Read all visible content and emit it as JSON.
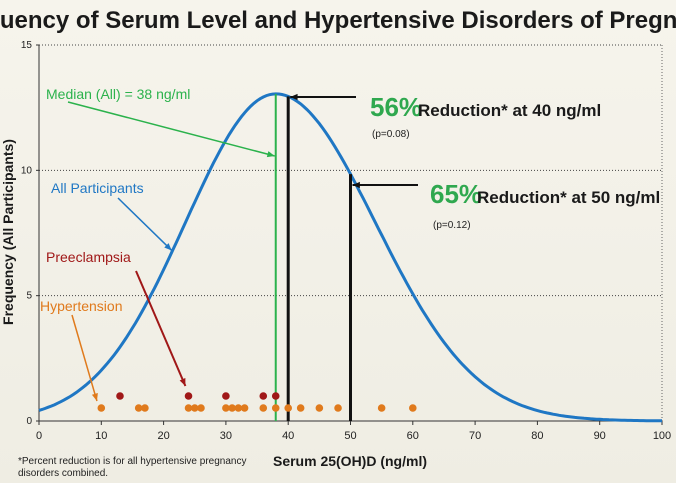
{
  "chart_data": {
    "type": "line",
    "title": "Frequency of Serum Level and Hypertensive Disorders of Pregnancy",
    "xlabel": "Serum 25(OH)D (ng/ml)",
    "ylabel": "Frequency (All Participants)",
    "xlim": [
      0,
      100
    ],
    "ylim": [
      0,
      15
    ],
    "xticks": [
      "0",
      "10",
      "20",
      "30",
      "40",
      "50",
      "60",
      "70",
      "80",
      "90",
      "100"
    ],
    "yticks": [
      "0",
      "5",
      "10",
      "15"
    ],
    "grid": "horizontal dotted at 5, 10",
    "distribution": {
      "name": "All Participants",
      "peak_x": 38,
      "peak_y": 13.05,
      "sd_left": 14.5,
      "sd_right": 16
    },
    "hypertension_points": [
      10,
      16,
      17,
      24,
      25,
      26,
      30,
      31,
      32,
      33,
      36,
      38,
      40,
      42,
      45,
      48,
      55,
      60
    ],
    "preeclampsia_points": [
      13,
      24,
      30,
      36,
      38
    ],
    "median": {
      "label": "Median (All) = 38 ng/ml",
      "x": 38
    },
    "labels": {
      "all_participants": "All Participants",
      "preeclampsia": "Preeclampsia",
      "hypertension": "Hypertension"
    },
    "reductions": [
      {
        "percent": "56%",
        "text": "Reduction* at 40 ng/ml",
        "p": "(p=0.08)",
        "x": 40
      },
      {
        "percent": "65%",
        "text": "Reduction* at 50 ng/ml",
        "p": "(p=0.12)",
        "x": 50
      }
    ],
    "footnote": "*Percent reduction is for all hypertensive pregnancy disorders combined.",
    "colors": {
      "curve": "#1f77c4",
      "median": "#2bb24c",
      "preeclampsia": "#a01818",
      "hypertension": "#e07a1c",
      "reduction_line": "#111111"
    }
  }
}
